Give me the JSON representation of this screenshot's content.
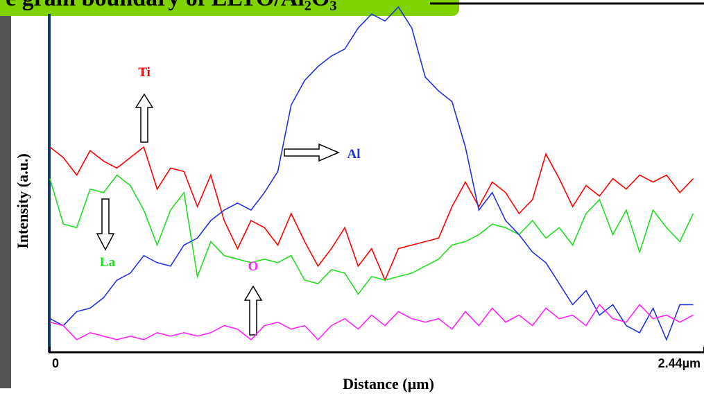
{
  "chart_data": {
    "type": "line",
    "title": "e grain boundary of LLTO/Al₂O₃",
    "x_label": "Distance (µm)",
    "y_label": "Intensity (a.u.)",
    "xlim": [
      0,
      2.44
    ],
    "ylim": [
      0,
      100
    ],
    "xticks": [
      0,
      {
        "value": 2.44,
        "label": "2.44µm"
      }
    ],
    "x": [
      0,
      0.05,
      0.1,
      0.15,
      0.2,
      0.25,
      0.3,
      0.35,
      0.4,
      0.45,
      0.5,
      0.55,
      0.6,
      0.65,
      0.7,
      0.75,
      0.8,
      0.85,
      0.9,
      0.95,
      1,
      1.05,
      1.1,
      1.15,
      1.2,
      1.25,
      1.3,
      1.35,
      1.4,
      1.45,
      1.5,
      1.55,
      1.6,
      1.65,
      1.7,
      1.75,
      1.8,
      1.85,
      1.9,
      1.95,
      2,
      2.05,
      2.1,
      2.15,
      2.2,
      2.25,
      2.3,
      2.35,
      2.4
    ],
    "series": [
      {
        "name": "Ti",
        "color": "#ff0000",
        "values": [
          58,
          55,
          50,
          57,
          54,
          52,
          55,
          58,
          46,
          52,
          51,
          41,
          50,
          37,
          29,
          37,
          35,
          30,
          39,
          31,
          24,
          29,
          35,
          24,
          29,
          20,
          29,
          30,
          31,
          32,
          41,
          48,
          41,
          48,
          45,
          39,
          43,
          56,
          49,
          41,
          47,
          44,
          49,
          46,
          50,
          48,
          50,
          45,
          49
        ]
      },
      {
        "name": "La",
        "color": "#22dd22",
        "values": [
          49,
          36,
          35,
          46,
          45,
          50,
          47,
          40,
          30,
          40,
          45,
          21,
          31,
          27,
          26,
          25,
          26,
          25,
          27,
          20,
          19,
          23,
          22,
          16,
          21,
          20,
          21,
          22,
          24,
          26,
          30,
          31,
          33,
          36,
          35,
          33,
          37,
          32,
          35,
          30,
          39,
          43,
          33,
          40,
          28,
          40,
          35,
          31,
          39
        ]
      },
      {
        "name": "Al",
        "color": "#2233dd",
        "values": [
          9,
          7,
          11,
          12,
          15,
          20,
          22,
          27,
          25,
          24,
          30,
          32,
          37,
          40,
          42,
          40,
          45,
          51,
          70,
          77,
          81,
          84,
          86,
          92,
          96,
          94,
          98,
          92,
          78,
          74,
          71,
          58,
          40,
          45,
          37,
          33,
          28,
          25,
          19,
          13,
          17,
          10,
          13,
          7,
          5,
          12,
          3,
          13,
          13
        ]
      },
      {
        "name": "O",
        "color": "#ff22ff",
        "values": [
          8,
          7,
          3,
          5,
          4,
          3,
          4,
          3,
          5,
          4,
          5,
          4,
          5,
          7,
          6,
          3,
          7,
          8,
          6,
          7,
          3,
          7,
          9,
          6,
          10,
          7,
          11,
          9,
          8,
          9,
          6,
          11,
          7,
          12,
          8,
          10,
          7,
          12,
          9,
          10,
          7,
          13,
          9,
          8,
          13,
          9,
          10,
          8,
          10
        ]
      }
    ]
  }
}
